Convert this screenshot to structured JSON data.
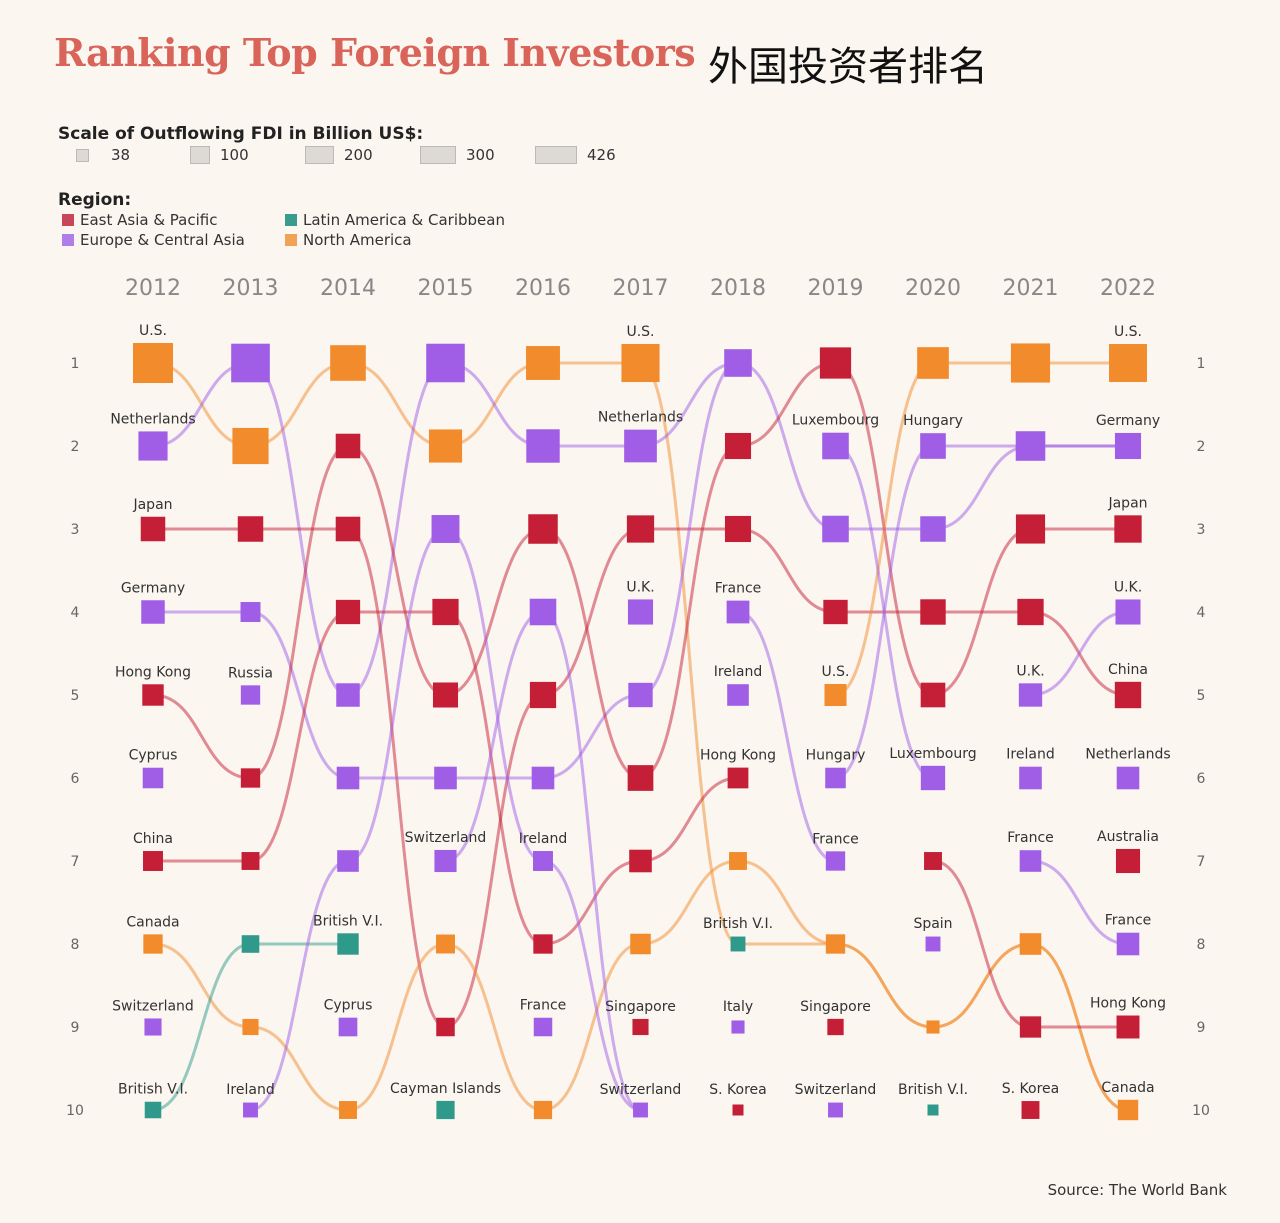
{
  "header": {
    "title": "Ranking Top Foreign Investors",
    "subtitle": "外国投资者排名"
  },
  "legend": {
    "scale_title": "Scale of Outflowing FDI in Billion US$:",
    "scale_values": [
      "38",
      "100",
      "200",
      "300",
      "426"
    ],
    "region_title": "Region:",
    "regions": [
      {
        "name": "East Asia & Pacific",
        "color": "#c51f37"
      },
      {
        "name": "Latin America & Caribbean",
        "color": "#2f9a8b"
      },
      {
        "name": "Europe & Central Asia",
        "color": "#a05ee6"
      },
      {
        "name": "North America",
        "color": "#f28b2b"
      }
    ]
  },
  "source": "Source: The World Bank",
  "chart_data": {
    "type": "bump",
    "title": "Ranking Top Foreign Investors",
    "x": [
      "2012",
      "2013",
      "2014",
      "2015",
      "2016",
      "2017",
      "2018",
      "2019",
      "2020",
      "2021",
      "2022"
    ],
    "ranks": [
      1,
      2,
      3,
      4,
      5,
      6,
      7,
      8,
      9,
      10
    ],
    "colors": {
      "EAP": "#c51f37",
      "LAC": "#2f9a8b",
      "ECA": "#a05ee6",
      "NA": "#f28b2b"
    },
    "series": [
      {
        "region": "NA",
        "ranks": [
          1,
          2,
          1,
          2,
          1,
          1,
          8,
          8,
          9,
          8,
          10
        ]
      },
      {
        "region": "ECA",
        "ranks": [
          2,
          1,
          5,
          1,
          2,
          2,
          1,
          3,
          3,
          2,
          2
        ]
      },
      {
        "region": "EAP",
        "ranks": [
          3,
          3,
          3,
          9,
          5,
          3,
          3,
          4,
          4,
          4,
          5
        ]
      },
      {
        "region": "ECA",
        "ranks": [
          4,
          4,
          6,
          6,
          6,
          5,
          1
        ]
      },
      {
        "region": "EAP",
        "ranks": [
          5,
          6,
          2,
          5,
          3,
          6,
          2,
          1,
          5,
          3,
          3
        ]
      },
      {
        "region": "EAP",
        "ranks": [
          7,
          7,
          4,
          4,
          8,
          7,
          6
        ]
      },
      {
        "region": "NA",
        "ranks": [
          8,
          9,
          10,
          8,
          10,
          8,
          7,
          8,
          9,
          8,
          10
        ]
      },
      {
        "region": "LAC",
        "ranks": [
          10,
          8,
          8
        ]
      },
      {
        "region": "ECA",
        "ranks": [
          null,
          10,
          7,
          3,
          7,
          10
        ]
      },
      {
        "region": "ECA",
        "ranks": [
          null,
          null,
          null,
          7,
          4,
          10
        ]
      },
      {
        "region": "ECA",
        "ranks": [
          null,
          null,
          null,
          null,
          null,
          null,
          4,
          7
        ]
      },
      {
        "region": "NA",
        "ranks": [
          null,
          null,
          null,
          null,
          null,
          null,
          null,
          5,
          1,
          1,
          1
        ]
      },
      {
        "region": "ECA",
        "ranks": [
          null,
          null,
          null,
          null,
          null,
          null,
          null,
          2,
          6
        ]
      },
      {
        "region": "ECA",
        "ranks": [
          null,
          null,
          null,
          null,
          null,
          null,
          null,
          6,
          2,
          2,
          2
        ]
      },
      {
        "region": "EAP",
        "ranks": [
          null,
          null,
          null,
          null,
          null,
          null,
          null,
          null,
          7,
          9,
          9
        ]
      },
      {
        "region": "ECA",
        "ranks": [
          null,
          null,
          null,
          null,
          null,
          null,
          null,
          null,
          null,
          5,
          4
        ]
      },
      {
        "region": "ECA",
        "ranks": [
          null,
          null,
          null,
          null,
          null,
          null,
          null,
          null,
          null,
          7,
          8
        ]
      }
    ],
    "points": [
      {
        "year": "2012",
        "rank": 1,
        "region": "NA",
        "fdi": 426,
        "label": "U.S."
      },
      {
        "year": "2012",
        "rank": 2,
        "region": "ECA",
        "fdi": 190,
        "label": "Netherlands"
      },
      {
        "year": "2012",
        "rank": 3,
        "region": "EAP",
        "fdi": 122,
        "label": "Japan"
      },
      {
        "year": "2012",
        "rank": 4,
        "region": "ECA",
        "fdi": 110,
        "label": "Germany"
      },
      {
        "year": "2012",
        "rank": 5,
        "region": "EAP",
        "fdi": 88,
        "label": "Hong Kong"
      },
      {
        "year": "2012",
        "rank": 6,
        "region": "ECA",
        "fdi": 80,
        "label": "Cyprus"
      },
      {
        "year": "2012",
        "rank": 7,
        "region": "EAP",
        "fdi": 75,
        "label": "China"
      },
      {
        "year": "2012",
        "rank": 8,
        "region": "NA",
        "fdi": 70,
        "label": "Canada"
      },
      {
        "year": "2012",
        "rank": 9,
        "region": "ECA",
        "fdi": 55,
        "label": "Switzerland"
      },
      {
        "year": "2012",
        "rank": 10,
        "region": "LAC",
        "fdi": 52,
        "label": "British V.I."
      },
      {
        "year": "2013",
        "rank": 1,
        "region": "ECA",
        "fdi": 390,
        "label": ""
      },
      {
        "year": "2013",
        "rank": 2,
        "region": "NA",
        "fdi": 330,
        "label": ""
      },
      {
        "year": "2013",
        "rank": 3,
        "region": "EAP",
        "fdi": 135,
        "label": ""
      },
      {
        "year": "2013",
        "rank": 4,
        "region": "ECA",
        "fdi": 75,
        "label": ""
      },
      {
        "year": "2013",
        "rank": 5,
        "region": "ECA",
        "fdi": 70,
        "label": "Russia"
      },
      {
        "year": "2013",
        "rank": 6,
        "region": "EAP",
        "fdi": 70,
        "label": ""
      },
      {
        "year": "2013",
        "rank": 7,
        "region": "EAP",
        "fdi": 60,
        "label": ""
      },
      {
        "year": "2013",
        "rank": 8,
        "region": "LAC",
        "fdi": 58,
        "label": ""
      },
      {
        "year": "2013",
        "rank": 9,
        "region": "NA",
        "fdi": 50,
        "label": ""
      },
      {
        "year": "2013",
        "rank": 10,
        "region": "ECA",
        "fdi": 45,
        "label": "Ireland"
      },
      {
        "year": "2014",
        "rank": 1,
        "region": "NA",
        "fdi": 317,
        "label": ""
      },
      {
        "year": "2014",
        "rank": 2,
        "region": "EAP",
        "fdi": 123,
        "label": ""
      },
      {
        "year": "2014",
        "rank": 3,
        "region": "EAP",
        "fdi": 123,
        "label": ""
      },
      {
        "year": "2014",
        "rank": 4,
        "region": "EAP",
        "fdi": 119,
        "label": ""
      },
      {
        "year": "2014",
        "rank": 5,
        "region": "ECA",
        "fdi": 110,
        "label": ""
      },
      {
        "year": "2014",
        "rank": 6,
        "region": "ECA",
        "fdi": 100,
        "label": ""
      },
      {
        "year": "2014",
        "rank": 7,
        "region": "ECA",
        "fdi": 90,
        "label": ""
      },
      {
        "year": "2014",
        "rank": 8,
        "region": "LAC",
        "fdi": 88,
        "label": "British V.I."
      },
      {
        "year": "2014",
        "rank": 9,
        "region": "ECA",
        "fdi": 65,
        "label": "Cyprus"
      },
      {
        "year": "2014",
        "rank": 10,
        "region": "NA",
        "fdi": 60,
        "label": ""
      },
      {
        "year": "2015",
        "rank": 1,
        "region": "ECA",
        "fdi": 388,
        "label": ""
      },
      {
        "year": "2015",
        "rank": 2,
        "region": "NA",
        "fdi": 264,
        "label": ""
      },
      {
        "year": "2015",
        "rank": 3,
        "region": "ECA",
        "fdi": 170,
        "label": ""
      },
      {
        "year": "2015",
        "rank": 4,
        "region": "EAP",
        "fdi": 145,
        "label": ""
      },
      {
        "year": "2015",
        "rank": 5,
        "region": "EAP",
        "fdi": 129,
        "label": ""
      },
      {
        "year": "2015",
        "rank": 6,
        "region": "ECA",
        "fdi": 100,
        "label": ""
      },
      {
        "year": "2015",
        "rank": 7,
        "region": "ECA",
        "fdi": 95,
        "label": "Switzerland"
      },
      {
        "year": "2015",
        "rank": 8,
        "region": "NA",
        "fdi": 67,
        "label": ""
      },
      {
        "year": "2015",
        "rank": 9,
        "region": "EAP",
        "fdi": 64,
        "label": ""
      },
      {
        "year": "2015",
        "rank": 10,
        "region": "LAC",
        "fdi": 62,
        "label": "Cayman Islands"
      },
      {
        "year": "2016",
        "rank": 1,
        "region": "NA",
        "fdi": 280,
        "label": ""
      },
      {
        "year": "2016",
        "rank": 2,
        "region": "ECA",
        "fdi": 270,
        "label": ""
      },
      {
        "year": "2016",
        "rank": 3,
        "region": "EAP",
        "fdi": 196,
        "label": ""
      },
      {
        "year": "2016",
        "rank": 4,
        "region": "ECA",
        "fdi": 150,
        "label": ""
      },
      {
        "year": "2016",
        "rank": 5,
        "region": "EAP",
        "fdi": 145,
        "label": ""
      },
      {
        "year": "2016",
        "rank": 6,
        "region": "ECA",
        "fdi": 100,
        "label": ""
      },
      {
        "year": "2016",
        "rank": 7,
        "region": "ECA",
        "fdi": 75,
        "label": "Ireland"
      },
      {
        "year": "2016",
        "rank": 8,
        "region": "EAP",
        "fdi": 70,
        "label": ""
      },
      {
        "year": "2016",
        "rank": 9,
        "region": "ECA",
        "fdi": 64,
        "label": "France"
      },
      {
        "year": "2016",
        "rank": 10,
        "region": "NA",
        "fdi": 62,
        "label": ""
      },
      {
        "year": "2017",
        "rank": 1,
        "region": "NA",
        "fdi": 376,
        "label": "U.S."
      },
      {
        "year": "2017",
        "rank": 2,
        "region": "ECA",
        "fdi": 255,
        "label": "Netherlands"
      },
      {
        "year": "2017",
        "rank": 3,
        "region": "EAP",
        "fdi": 160,
        "label": ""
      },
      {
        "year": "2017",
        "rank": 4,
        "region": "ECA",
        "fdi": 130,
        "label": "U.K."
      },
      {
        "year": "2017",
        "rank": 5,
        "region": "ECA",
        "fdi": 120,
        "label": ""
      },
      {
        "year": "2017",
        "rank": 6,
        "region": "EAP",
        "fdi": 138,
        "label": ""
      },
      {
        "year": "2017",
        "rank": 7,
        "region": "EAP",
        "fdi": 100,
        "label": ""
      },
      {
        "year": "2017",
        "rank": 8,
        "region": "NA",
        "fdi": 80,
        "label": ""
      },
      {
        "year": "2017",
        "rank": 9,
        "region": "EAP",
        "fdi": 50,
        "label": "Singapore"
      },
      {
        "year": "2017",
        "rank": 10,
        "region": "ECA",
        "fdi": 45,
        "label": "Switzerland"
      },
      {
        "year": "2018",
        "rank": 1,
        "region": "ECA",
        "fdi": 165,
        "label": ""
      },
      {
        "year": "2018",
        "rank": 2,
        "region": "EAP",
        "fdi": 143,
        "label": ""
      },
      {
        "year": "2018",
        "rank": 3,
        "region": "EAP",
        "fdi": 143,
        "label": ""
      },
      {
        "year": "2018",
        "rank": 4,
        "region": "ECA",
        "fdi": 102,
        "label": "France"
      },
      {
        "year": "2018",
        "rank": 5,
        "region": "ECA",
        "fdi": 90,
        "label": "Ireland"
      },
      {
        "year": "2018",
        "rank": 6,
        "region": "EAP",
        "fdi": 82,
        "label": "Hong Kong"
      },
      {
        "year": "2018",
        "rank": 7,
        "region": "NA",
        "fdi": 60,
        "label": ""
      },
      {
        "year": "2018",
        "rank": 8,
        "region": "LAC",
        "fdi": 45,
        "label": "British V.I."
      },
      {
        "year": "2018",
        "rank": 9,
        "region": "ECA",
        "fdi": 40,
        "label": "Italy"
      },
      {
        "year": "2018",
        "rank": 10,
        "region": "EAP",
        "fdi": 38,
        "label": "S. Korea"
      },
      {
        "year": "2019",
        "rank": 1,
        "region": "EAP",
        "fdi": 227,
        "label": ""
      },
      {
        "year": "2019",
        "rank": 2,
        "region": "ECA",
        "fdi": 150,
        "label": "Luxembourg"
      },
      {
        "year": "2019",
        "rank": 3,
        "region": "ECA",
        "fdi": 150,
        "label": ""
      },
      {
        "year": "2019",
        "rank": 4,
        "region": "EAP",
        "fdi": 120,
        "label": ""
      },
      {
        "year": "2019",
        "rank": 5,
        "region": "NA",
        "fdi": 94,
        "label": "U.S."
      },
      {
        "year": "2019",
        "rank": 6,
        "region": "ECA",
        "fdi": 80,
        "label": "Hungary"
      },
      {
        "year": "2019",
        "rank": 7,
        "region": "ECA",
        "fdi": 70,
        "label": "France"
      },
      {
        "year": "2019",
        "rank": 8,
        "region": "NA",
        "fdi": 70,
        "label": ""
      },
      {
        "year": "2019",
        "rank": 9,
        "region": "EAP",
        "fdi": 51,
        "label": "Singapore"
      },
      {
        "year": "2019",
        "rank": 10,
        "region": "ECA",
        "fdi": 45,
        "label": "Switzerland"
      },
      {
        "year": "2020",
        "rank": 1,
        "region": "NA",
        "fdi": 235,
        "label": ""
      },
      {
        "year": "2020",
        "rank": 2,
        "region": "ECA",
        "fdi": 137,
        "label": "Hungary"
      },
      {
        "year": "2020",
        "rank": 3,
        "region": "ECA",
        "fdi": 135,
        "label": ""
      },
      {
        "year": "2020",
        "rank": 4,
        "region": "EAP",
        "fdi": 134,
        "label": ""
      },
      {
        "year": "2020",
        "rank": 5,
        "region": "EAP",
        "fdi": 124,
        "label": ""
      },
      {
        "year": "2020",
        "rank": 6,
        "region": "ECA",
        "fdi": 120,
        "label": "Luxembourg"
      },
      {
        "year": "2020",
        "rank": 7,
        "region": "EAP",
        "fdi": 60,
        "label": ""
      },
      {
        "year": "2020",
        "rank": 8,
        "region": "ECA",
        "fdi": 45,
        "label": "Spain"
      },
      {
        "year": "2020",
        "rank": 9,
        "region": "NA",
        "fdi": 40,
        "label": ""
      },
      {
        "year": "2020",
        "rank": 10,
        "region": "LAC",
        "fdi": 38,
        "label": "British V.I."
      },
      {
        "year": "2021",
        "rank": 1,
        "region": "NA",
        "fdi": 403,
        "label": ""
      },
      {
        "year": "2021",
        "rank": 2,
        "region": "ECA",
        "fdi": 197,
        "label": ""
      },
      {
        "year": "2021",
        "rank": 3,
        "region": "EAP",
        "fdi": 190,
        "label": ""
      },
      {
        "year": "2021",
        "rank": 4,
        "region": "EAP",
        "fdi": 146,
        "label": ""
      },
      {
        "year": "2021",
        "rank": 5,
        "region": "ECA",
        "fdi": 108,
        "label": "U.K."
      },
      {
        "year": "2021",
        "rank": 6,
        "region": "ECA",
        "fdi": 100,
        "label": "Ireland"
      },
      {
        "year": "2021",
        "rank": 7,
        "region": "ECA",
        "fdi": 90,
        "label": "France"
      },
      {
        "year": "2021",
        "rank": 8,
        "region": "NA",
        "fdi": 90,
        "label": ""
      },
      {
        "year": "2021",
        "rank": 9,
        "region": "EAP",
        "fdi": 87,
        "label": ""
      },
      {
        "year": "2021",
        "rank": 10,
        "region": "EAP",
        "fdi": 60,
        "label": "S. Korea"
      },
      {
        "year": "2022",
        "rank": 1,
        "region": "NA",
        "fdi": 373,
        "label": "U.S."
      },
      {
        "year": "2022",
        "rank": 2,
        "region": "ECA",
        "fdi": 143,
        "label": "Germany"
      },
      {
        "year": "2022",
        "rank": 3,
        "region": "EAP",
        "fdi": 161,
        "label": "Japan"
      },
      {
        "year": "2022",
        "rank": 4,
        "region": "ECA",
        "fdi": 129,
        "label": "U.K."
      },
      {
        "year": "2022",
        "rank": 5,
        "region": "EAP",
        "fdi": 147,
        "label": "China"
      },
      {
        "year": "2022",
        "rank": 6,
        "region": "ECA",
        "fdi": 100,
        "label": "Netherlands"
      },
      {
        "year": "2022",
        "rank": 7,
        "region": "EAP",
        "fdi": 117,
        "label": "Australia"
      },
      {
        "year": "2022",
        "rank": 8,
        "region": "ECA",
        "fdi": 100,
        "label": "France"
      },
      {
        "year": "2022",
        "rank": 9,
        "region": "EAP",
        "fdi": 104,
        "label": "Hong Kong"
      },
      {
        "year": "2022",
        "rank": 10,
        "region": "NA",
        "fdi": 79,
        "label": "Canada"
      }
    ]
  }
}
